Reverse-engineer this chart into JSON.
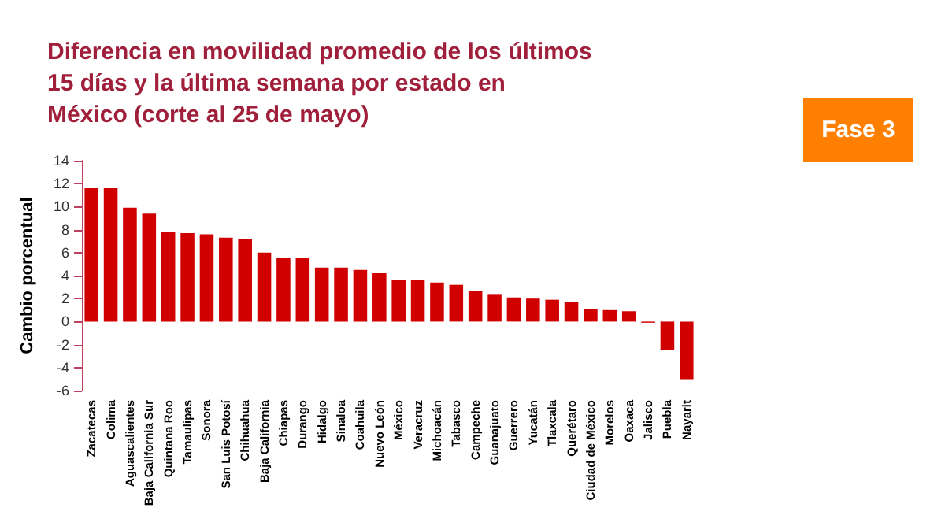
{
  "chart_data": {
    "type": "bar",
    "title": "Diferencia en movilidad promedio de los últimos 15 días y la última semana por estado en México (corte al 25 de mayo)",
    "ylabel": "Cambio porcentual",
    "annotations": [
      "Fase 3"
    ],
    "categories": [
      "Zacatecas",
      "Colima",
      "Aguascalientes",
      "Baja California Sur",
      "Quintana Roo",
      "Tamaulipas",
      "Sonora",
      "San Luis Potosí",
      "Chihuahua",
      "Baja California",
      "Chiapas",
      "Durango",
      "Hidalgo",
      "Sinaloa",
      "Coahuila",
      "Nuevo León",
      "México",
      "Veracruz",
      "Michoacán",
      "Tabasco",
      "Campeche",
      "Guanajuato",
      "Guerrero",
      "Yucatán",
      "Tlaxcala",
      "Querétaro",
      "Ciudad de México",
      "Morelos",
      "Oaxaca",
      "Jalisco",
      "Puebla",
      "Nayarit"
    ],
    "values": [
      11.6,
      11.6,
      9.9,
      9.4,
      7.8,
      7.7,
      7.6,
      7.3,
      7.2,
      6.0,
      5.5,
      5.5,
      4.7,
      4.7,
      4.5,
      4.2,
      3.6,
      3.6,
      3.4,
      3.2,
      2.7,
      2.4,
      2.1,
      2.0,
      1.9,
      1.7,
      1.1,
      1.0,
      0.9,
      -0.1,
      -2.5,
      -5.0
    ],
    "color": "#d00000",
    "ylim": [
      -6,
      14
    ],
    "yticks": [
      -6,
      -4,
      -2,
      0,
      2,
      4,
      6,
      8,
      10,
      12,
      14
    ],
    "grid": false
  }
}
